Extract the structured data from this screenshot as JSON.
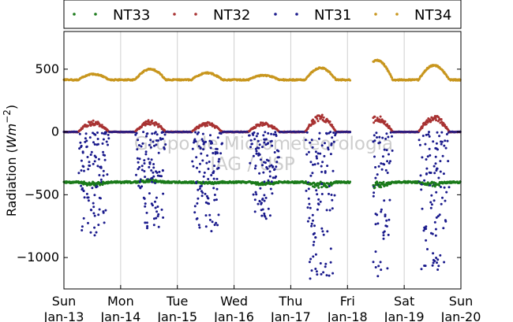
{
  "chart_data": {
    "type": "scatter",
    "ylabel": "Radiation (Wm^-2)",
    "ylim": [
      -1250,
      800
    ],
    "xlim": [
      0,
      7
    ],
    "yticks": [
      500,
      0,
      -500,
      -1000
    ],
    "ytick_labels": [
      "500",
      "0",
      "−500",
      "−1000"
    ],
    "xticks": [
      {
        "x": 0,
        "day": "Sun",
        "date": "Jan-13"
      },
      {
        "x": 1,
        "day": "Mon",
        "date": "Jan-14"
      },
      {
        "x": 2,
        "day": "Tue",
        "date": "Jan-15"
      },
      {
        "x": 3,
        "day": "Wed",
        "date": "Jan-16"
      },
      {
        "x": 4,
        "day": "Thu",
        "date": "Jan-17"
      },
      {
        "x": 5,
        "day": "Fri",
        "date": "Jan-18"
      },
      {
        "x": 6,
        "day": "Sat",
        "date": "Jan-19"
      },
      {
        "x": 7,
        "day": "Sun",
        "date": "Jan-20"
      }
    ],
    "watermark": [
      "Grupo de Micrometeorologia",
      "IAG / USP"
    ],
    "legend_position": "top",
    "series": [
      {
        "name": "NT33",
        "color": "#1a7a1a",
        "baseline": -400
      },
      {
        "name": "NT32",
        "color": "#a83232",
        "baseline": 0
      },
      {
        "name": "NT31",
        "color": "#1a1a8c",
        "baseline": 0
      },
      {
        "name": "NT34",
        "color": "#c8961e",
        "baseline": 415
      }
    ],
    "gap": [
      5.05,
      5.45
    ],
    "daily_peaks": [
      {
        "day": 0,
        "NT34": 460,
        "NT32": 90,
        "NT31": -850,
        "NT33": -430
      },
      {
        "day": 1,
        "NT34": 500,
        "NT32": 95,
        "NT31": -830,
        "NT33": -380
      },
      {
        "day": 2,
        "NT34": 470,
        "NT32": 80,
        "NT31": -790,
        "NT33": -410
      },
      {
        "day": 3,
        "NT34": 450,
        "NT32": 80,
        "NT31": -710,
        "NT33": -420
      },
      {
        "day": 4,
        "NT34": 510,
        "NT32": 140,
        "NT31": -1200,
        "NT33": -450
      },
      {
        "day": 5,
        "NT34": 570,
        "NT32": 130,
        "NT31": -1150,
        "NT33": -450
      },
      {
        "day": 6,
        "NT34": 530,
        "NT32": 140,
        "NT31": -1150,
        "NT33": -430
      }
    ]
  }
}
